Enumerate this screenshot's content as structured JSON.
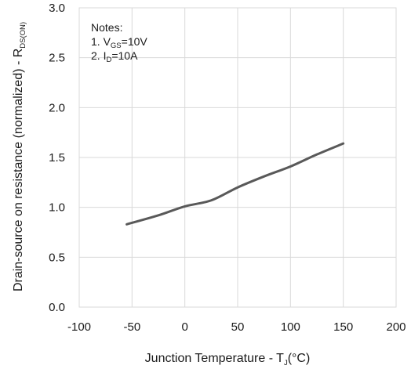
{
  "chart_data": {
    "type": "line",
    "xlabel": {
      "main": "Junction Temperature - T",
      "sub": "J",
      "unit": "(°C)"
    },
    "ylabel": {
      "main": "Drain-source on resistance (normalized) - R",
      "sub": "DS(ON)"
    },
    "xlim": [
      -100,
      200
    ],
    "ylim": [
      0.0,
      3.0
    ],
    "x_ticks": [
      -100,
      -50,
      0,
      50,
      100,
      150,
      200
    ],
    "x_tick_labels": [
      "-100",
      "-50",
      "0",
      "50",
      "100",
      "150",
      "200"
    ],
    "y_ticks": [
      0.0,
      0.5,
      1.0,
      1.5,
      2.0,
      2.5,
      3.0
    ],
    "y_tick_labels": [
      "0.0",
      "0.5",
      "1.0",
      "1.5",
      "2.0",
      "2.5",
      "3.0"
    ],
    "grid": true,
    "notes": {
      "title": "Notes:",
      "line1": {
        "prefix": "1. V",
        "sub": "GS",
        "suffix": "=10V"
      },
      "line2": {
        "prefix": "2. I",
        "sub": "D",
        "suffix": "=10A"
      }
    },
    "series": [
      {
        "line_color": "#595959",
        "x": [
          -55,
          -25,
          0,
          25,
          50,
          75,
          100,
          125,
          150
        ],
        "y": [
          0.83,
          0.92,
          1.01,
          1.07,
          1.2,
          1.31,
          1.41,
          1.53,
          1.64
        ]
      }
    ]
  }
}
